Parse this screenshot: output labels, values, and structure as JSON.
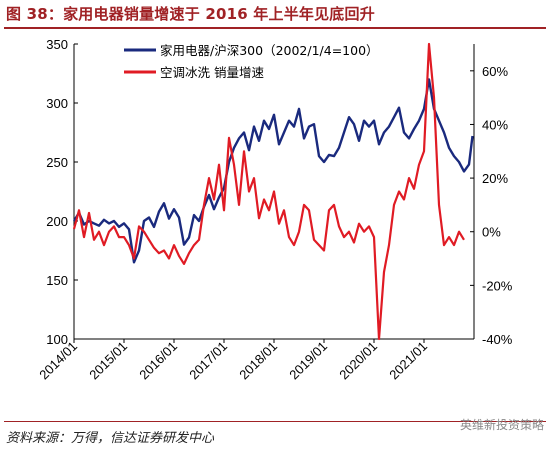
{
  "title": "图 38：家用电器销量增速于 2016 年上半年见底回升",
  "source": "资料来源：万得，信达证券研发中心",
  "watermark": "英维新投资策略",
  "chart_data": {
    "type": "line",
    "x_ticks": [
      "2014/01",
      "2015/01",
      "2016/01",
      "2017/01",
      "2018/01",
      "2019/01",
      "2020/01",
      "2021/01"
    ],
    "x_range": [
      "2014/01",
      "2021/12"
    ],
    "left_axis": {
      "ylim": [
        100,
        350
      ],
      "ticks": [
        100,
        150,
        200,
        250,
        300,
        350
      ]
    },
    "right_axis": {
      "ylim": [
        -40,
        70
      ],
      "ticks": [
        "-40%",
        "-20%",
        "0%",
        "20%",
        "40%",
        "60%"
      ],
      "tick_values": [
        -40,
        -20,
        0,
        20,
        40,
        60
      ]
    },
    "legend_position": "top-center",
    "series": [
      {
        "name": "家用电器/沪深300（2002/1/4=100）",
        "axis": "left",
        "color": "#1a2a7e",
        "x": [
          2014.0,
          2014.1,
          2014.2,
          2014.3,
          2014.4,
          2014.5,
          2014.6,
          2014.7,
          2014.8,
          2014.9,
          2015.0,
          2015.1,
          2015.2,
          2015.3,
          2015.4,
          2015.5,
          2015.6,
          2015.7,
          2015.8,
          2015.9,
          2016.0,
          2016.1,
          2016.2,
          2016.3,
          2016.4,
          2016.5,
          2016.6,
          2016.7,
          2016.8,
          2016.9,
          2017.0,
          2017.1,
          2017.2,
          2017.3,
          2017.4,
          2017.5,
          2017.6,
          2017.7,
          2017.8,
          2017.9,
          2018.0,
          2018.1,
          2018.2,
          2018.3,
          2018.4,
          2018.5,
          2018.6,
          2018.7,
          2018.8,
          2018.9,
          2019.0,
          2019.1,
          2019.2,
          2019.3,
          2019.4,
          2019.5,
          2019.6,
          2019.7,
          2019.8,
          2019.9,
          2020.0,
          2020.1,
          2020.2,
          2020.3,
          2020.4,
          2020.5,
          2020.6,
          2020.7,
          2020.8,
          2020.9,
          2021.0,
          2021.1,
          2021.2,
          2021.3,
          2021.4,
          2021.5,
          2021.6,
          2021.7,
          2021.8,
          2021.9,
          2021.97
        ],
        "values": [
          200,
          207,
          197,
          200,
          198,
          196,
          201,
          198,
          200,
          195,
          198,
          193,
          165,
          175,
          200,
          203,
          195,
          208,
          215,
          202,
          210,
          203,
          180,
          186,
          205,
          200,
          212,
          222,
          210,
          220,
          228,
          250,
          262,
          270,
          275,
          260,
          280,
          268,
          285,
          278,
          290,
          265,
          275,
          285,
          280,
          295,
          270,
          280,
          282,
          255,
          250,
          256,
          255,
          262,
          275,
          288,
          282,
          268,
          285,
          280,
          285,
          265,
          275,
          280,
          288,
          296,
          275,
          270,
          278,
          285,
          295,
          320,
          295,
          285,
          275,
          262,
          255,
          250,
          242,
          248,
          272
        ]
      },
      {
        "name": "空调冰洗 销量增速",
        "axis": "right",
        "color": "#e01b24",
        "x": [
          2014.0,
          2014.1,
          2014.2,
          2014.3,
          2014.4,
          2014.5,
          2014.6,
          2014.7,
          2014.8,
          2014.9,
          2015.0,
          2015.1,
          2015.2,
          2015.3,
          2015.4,
          2015.5,
          2015.6,
          2015.7,
          2015.8,
          2015.9,
          2016.0,
          2016.1,
          2016.2,
          2016.3,
          2016.4,
          2016.5,
          2016.6,
          2016.7,
          2016.8,
          2016.9,
          2017.0,
          2017.1,
          2017.2,
          2017.3,
          2017.4,
          2017.5,
          2017.6,
          2017.7,
          2017.8,
          2017.9,
          2018.0,
          2018.1,
          2018.2,
          2018.3,
          2018.4,
          2018.5,
          2018.6,
          2018.7,
          2018.8,
          2018.9,
          2019.0,
          2019.1,
          2019.2,
          2019.3,
          2019.4,
          2019.5,
          2019.6,
          2019.7,
          2019.8,
          2019.9,
          2020.0,
          2020.1,
          2020.2,
          2020.3,
          2020.4,
          2020.5,
          2020.6,
          2020.7,
          2020.8,
          2020.9,
          2021.0,
          2021.1,
          2021.2,
          2021.25,
          2021.3,
          2021.4,
          2021.5,
          2021.6,
          2021.7,
          2021.8
        ],
        "values": [
          1,
          8,
          -2,
          7,
          -3,
          0,
          -5,
          0,
          2,
          -2,
          -2,
          -5,
          -10,
          2,
          0,
          -3,
          -6,
          -8,
          -7,
          -10,
          -5,
          -9,
          -12,
          -8,
          -5,
          -3,
          10,
          20,
          12,
          25,
          8,
          35,
          25,
          10,
          30,
          15,
          20,
          5,
          12,
          8,
          15,
          3,
          8,
          -2,
          -5,
          0,
          10,
          8,
          -3,
          -5,
          -7,
          8,
          10,
          2,
          -2,
          0,
          -4,
          3,
          0,
          2,
          -2,
          -40,
          -15,
          -5,
          10,
          15,
          12,
          20,
          16,
          25,
          30,
          70,
          50,
          30,
          10,
          -5,
          -2,
          -5,
          0,
          -3
        ]
      }
    ]
  }
}
